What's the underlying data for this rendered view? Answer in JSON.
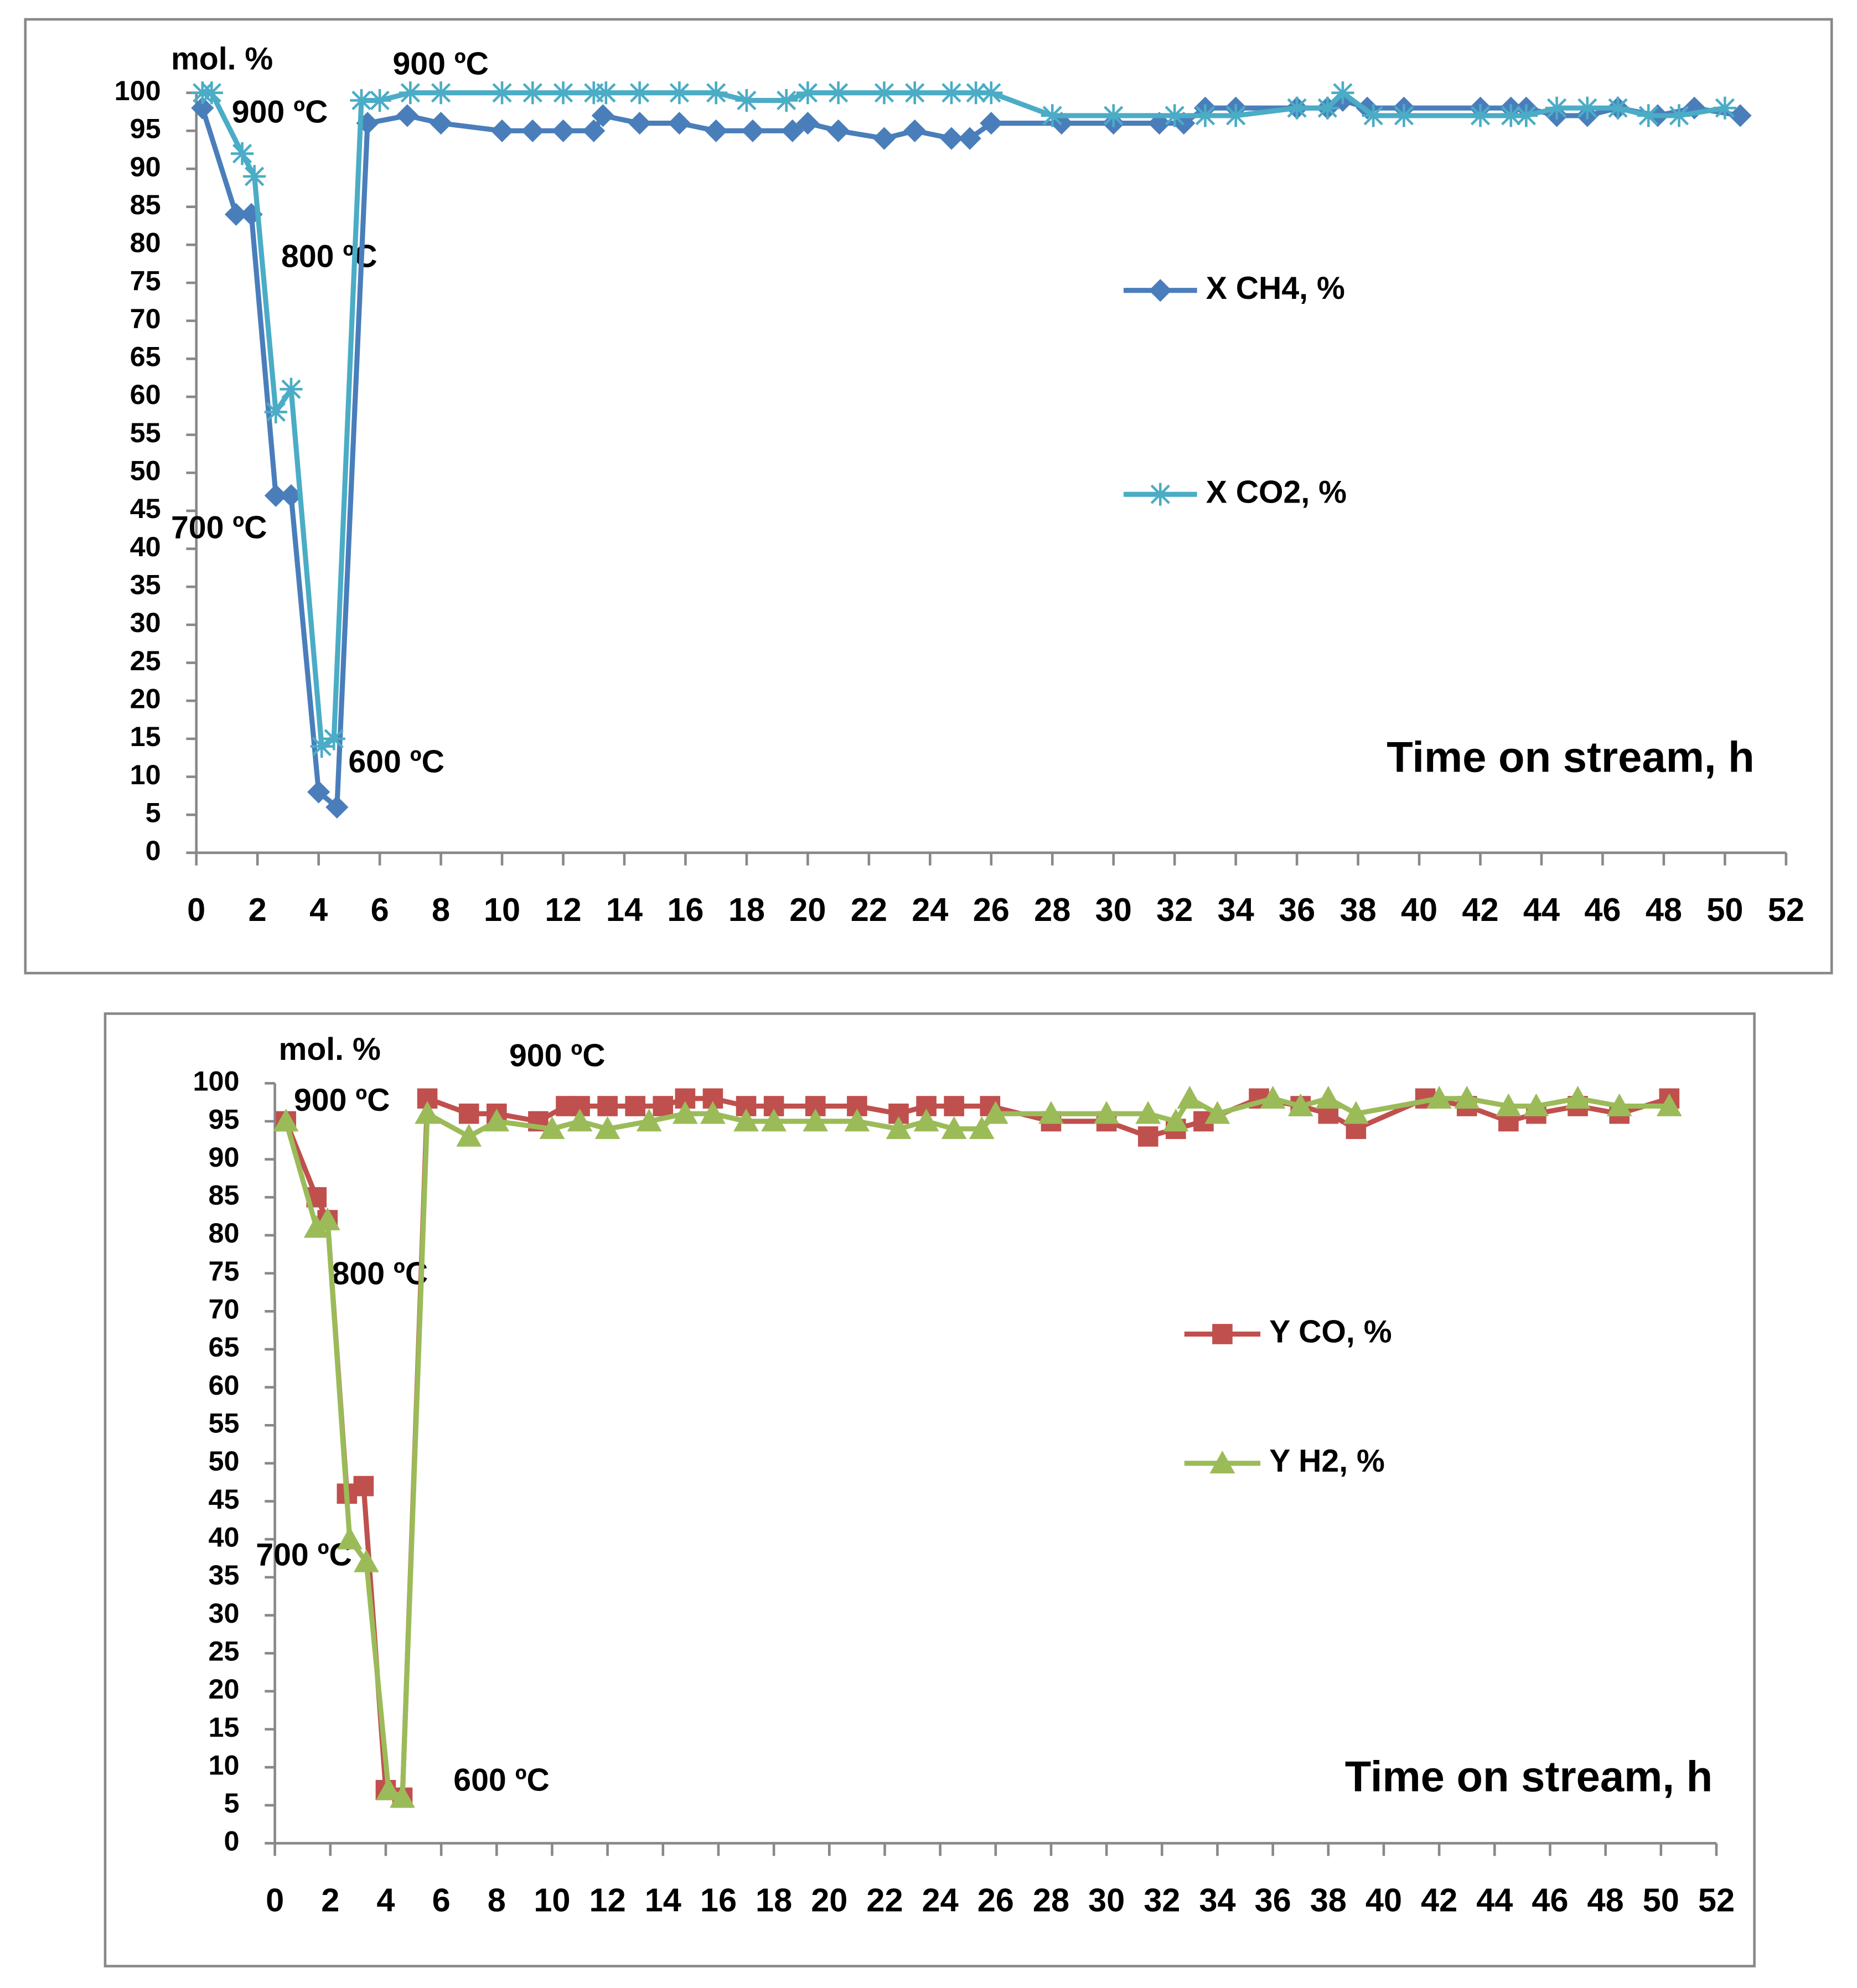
{
  "chart_data": [
    {
      "type": "line",
      "y_label": "mol. %",
      "x_label": "Time on stream, h",
      "annotations": [
        "900 ºC",
        "900 ºC",
        "800 ºC",
        "700 ºC",
        "600 ºC"
      ],
      "xlim": [
        0,
        52
      ],
      "ylim": [
        0,
        100
      ],
      "xticks": [
        0,
        2,
        4,
        6,
        8,
        10,
        12,
        14,
        16,
        18,
        20,
        22,
        24,
        26,
        28,
        30,
        32,
        34,
        36,
        38,
        40,
        42,
        44,
        46,
        48,
        50,
        52
      ],
      "yticks": [
        0,
        5,
        10,
        15,
        20,
        25,
        30,
        35,
        40,
        45,
        50,
        55,
        60,
        65,
        70,
        75,
        80,
        85,
        90,
        95,
        100
      ],
      "grid": false,
      "legend": "right",
      "series": [
        {
          "name": "X CH4, %",
          "color": "#4a7ebb",
          "marker": "diamond",
          "x": [
            0.2,
            1.3,
            1.8,
            2.6,
            3.1,
            4.0,
            4.6,
            5.6,
            6.9,
            8.0,
            10,
            11,
            12,
            13,
            13.3,
            14.5,
            15.8,
            17,
            18.2,
            19.5,
            20,
            21,
            22.5,
            23.5,
            24.7,
            25.3,
            26,
            28.3,
            30,
            31.5,
            32.3,
            33,
            34,
            36,
            37,
            37.5,
            38.3,
            39.5,
            42,
            43,
            43.5,
            44.5,
            45.5,
            46.5,
            47.8,
            49,
            50.5
          ],
          "values": [
            98,
            84,
            84,
            47,
            47,
            8,
            6,
            96,
            97,
            96,
            95,
            95,
            95,
            95,
            97,
            96,
            96,
            95,
            95,
            95,
            96,
            95,
            94,
            95,
            94,
            94,
            96,
            96,
            96,
            96,
            96,
            98,
            98,
            98,
            98,
            99,
            98,
            98,
            98,
            98,
            98,
            97,
            97,
            98,
            97,
            98,
            97
          ]
        },
        {
          "name": "X CO2, %",
          "color": "#4bacc6",
          "marker": "asterisk",
          "x": [
            0.2,
            0.5,
            1.5,
            1.9,
            2.6,
            3.1,
            4.1,
            4.5,
            5.4,
            6,
            7,
            8,
            10,
            11,
            12,
            13,
            13.4,
            14.5,
            15.8,
            17,
            18,
            19.3,
            20,
            21,
            22.5,
            23.5,
            24.7,
            25.5,
            26,
            28,
            30,
            32,
            33,
            34,
            36,
            37,
            37.5,
            38.5,
            39.5,
            42,
            43,
            43.5,
            44.5,
            45.5,
            46.5,
            47.5,
            48.5,
            50
          ],
          "values": [
            100,
            100,
            92,
            89,
            58,
            61,
            14,
            15,
            99,
            99,
            100,
            100,
            100,
            100,
            100,
            100,
            100,
            100,
            100,
            100,
            99,
            99,
            100,
            100,
            100,
            100,
            100,
            100,
            100,
            97,
            97,
            97,
            97,
            97,
            98,
            98,
            100,
            97,
            97,
            97,
            97,
            97,
            98,
            98,
            98,
            97,
            97,
            98
          ]
        }
      ]
    },
    {
      "type": "line",
      "y_label": "mol. %",
      "x_label": "Time on stream, h",
      "annotations": [
        "900 ºC",
        "900 ºC",
        "800 ºC",
        "700 ºC",
        "600 ºC"
      ],
      "xlim": [
        0,
        52
      ],
      "ylim": [
        0,
        100
      ],
      "xticks": [
        0,
        2,
        4,
        6,
        8,
        10,
        12,
        14,
        16,
        18,
        20,
        22,
        24,
        26,
        28,
        30,
        32,
        34,
        36,
        38,
        40,
        42,
        44,
        46,
        48,
        50,
        52
      ],
      "yticks": [
        0,
        5,
        10,
        15,
        20,
        25,
        30,
        35,
        40,
        45,
        50,
        55,
        60,
        65,
        70,
        75,
        80,
        85,
        90,
        95,
        100
      ],
      "grid": false,
      "legend": "right",
      "series": [
        {
          "name": "Y CO, %",
          "color": "#c0504d",
          "marker": "square",
          "x": [
            0.4,
            1.5,
            1.9,
            2.6,
            3.2,
            4.0,
            4.6,
            5.5,
            7,
            8,
            9.5,
            10.5,
            11,
            12,
            13,
            14,
            14.8,
            15.8,
            17,
            18,
            19.5,
            21,
            22.5,
            23.5,
            24.5,
            25.8,
            28,
            30,
            31.5,
            32.5,
            33.5,
            35.5,
            37,
            38,
            39,
            41.5,
            43,
            44.5,
            45.5,
            47,
            48.5,
            50.3
          ],
          "values": [
            95,
            85,
            82,
            46,
            47,
            7,
            6,
            98,
            96,
            96,
            95,
            97,
            97,
            97,
            97,
            97,
            98,
            98,
            97,
            97,
            97,
            97,
            96,
            97,
            97,
            97,
            95,
            95,
            93,
            94,
            95,
            98,
            97,
            96,
            94,
            98,
            97,
            95,
            96,
            97,
            96,
            98
          ]
        },
        {
          "name": "Y H2, %",
          "color": "#9bbb59",
          "marker": "triangle",
          "x": [
            0.4,
            1.5,
            1.9,
            2.7,
            3.3,
            4.1,
            4.6,
            5.5,
            7,
            8,
            10,
            11,
            12,
            13.5,
            14.8,
            15.8,
            17,
            18,
            19.5,
            21,
            22.5,
            23.5,
            24.5,
            25.5,
            26,
            28,
            30,
            31.5,
            32.5,
            33,
            34,
            36,
            37,
            38,
            39,
            42,
            43,
            44.5,
            45.5,
            47,
            48.5,
            50.3
          ],
          "values": [
            95,
            81,
            82,
            40,
            37,
            7,
            6,
            96,
            93,
            95,
            94,
            95,
            94,
            95,
            96,
            96,
            95,
            95,
            95,
            95,
            94,
            95,
            94,
            94,
            96,
            96,
            96,
            96,
            95,
            98,
            96,
            98,
            97,
            98,
            96,
            98,
            98,
            97,
            97,
            98,
            97,
            97
          ]
        }
      ]
    }
  ]
}
